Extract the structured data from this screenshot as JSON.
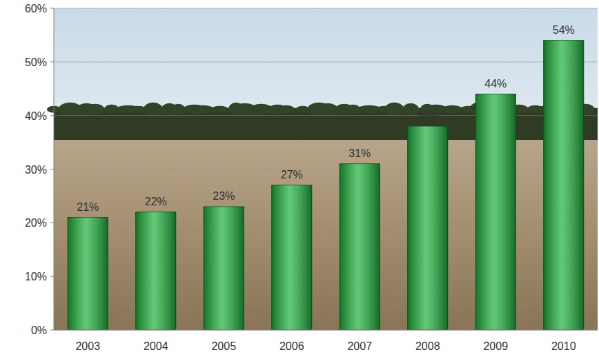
{
  "chart_data": {
    "type": "bar",
    "categories": [
      "2003",
      "2004",
      "2005",
      "2006",
      "2007",
      "2008",
      "2009",
      "2010"
    ],
    "values": [
      21,
      22,
      23,
      27,
      31,
      38,
      44,
      54
    ],
    "value_labels": [
      "21%",
      "22%",
      "23%",
      "27%",
      "31%",
      "38%",
      "44%",
      "54%"
    ],
    "color": "#1fb23c",
    "ylim": [
      0,
      60
    ],
    "yticks": [
      {
        "value": 0,
        "label": "0%"
      },
      {
        "value": 10,
        "label": "10%"
      },
      {
        "value": 20,
        "label": "20%"
      },
      {
        "value": 30,
        "label": "30%"
      },
      {
        "value": 40,
        "label": "40%"
      },
      {
        "value": 50,
        "label": "50%"
      },
      {
        "value": 60,
        "label": "60%"
      }
    ],
    "grid": true,
    "data_labels": true
  }
}
